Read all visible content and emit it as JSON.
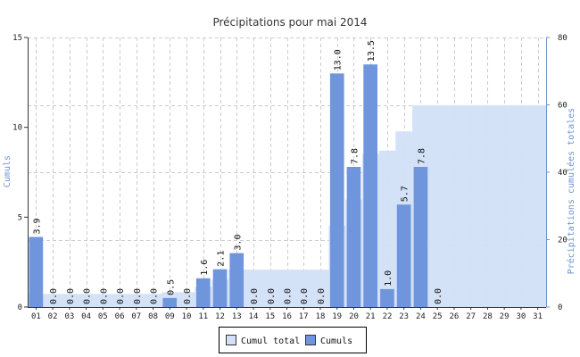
{
  "chart_data": {
    "type": "bar",
    "title": "Précipitations pour mai 2014",
    "categories": [
      "01",
      "02",
      "03",
      "04",
      "05",
      "06",
      "07",
      "08",
      "09",
      "10",
      "11",
      "12",
      "13",
      "14",
      "15",
      "16",
      "17",
      "18",
      "19",
      "20",
      "21",
      "22",
      "23",
      "24",
      "25",
      "26",
      "27",
      "28",
      "29",
      "30",
      "31"
    ],
    "series": [
      {
        "name": "Cumuls",
        "type": "bar",
        "axis": "left",
        "color": "#6f96dd",
        "values": [
          3.9,
          0.0,
          0.0,
          0.0,
          0.0,
          0.0,
          0.0,
          0.0,
          0.5,
          0.0,
          1.6,
          2.1,
          3.0,
          0.0,
          0.0,
          0.0,
          0.0,
          0.0,
          13.0,
          7.8,
          13.5,
          1.0,
          5.7,
          7.8,
          0.0,
          null,
          null,
          null,
          null,
          null,
          null
        ],
        "labels": [
          "3.9",
          "0.0",
          "0.0",
          "0.0",
          "0.0",
          "0.0",
          "0.0",
          "0.0",
          "0.5",
          "0.0",
          "1.6",
          "2.1",
          "3.0",
          "0.0",
          "0.0",
          "0.0",
          "0.0",
          "0.0",
          "13.0",
          "7.8",
          "13.5",
          "1.0",
          "5.7",
          "7.8",
          "0.0",
          "",
          "",
          "",
          "",
          "",
          ""
        ]
      },
      {
        "name": "Cumul total",
        "type": "area",
        "axis": "right",
        "color": "#d2e0f8",
        "values": [
          3.9,
          3.9,
          3.9,
          3.9,
          3.9,
          3.9,
          3.9,
          3.9,
          4.4,
          4.4,
          6.0,
          8.1,
          11.1,
          11.1,
          11.1,
          11.1,
          11.1,
          11.1,
          24.1,
          31.9,
          45.4,
          46.4,
          52.1,
          59.9,
          59.9,
          59.9,
          59.9,
          59.9,
          59.9,
          59.9,
          59.9
        ]
      }
    ],
    "ylabel": "Cumuls",
    "ylabel_right": "Précipitations cumulées totales",
    "ylim": [
      0,
      15
    ],
    "yticks": [
      0,
      5,
      10,
      15
    ],
    "ylim_right": [
      0,
      80
    ],
    "yticks_right": [
      0,
      20,
      40,
      60,
      80
    ],
    "grid": true,
    "legend": "bottom",
    "legend_entries": [
      "Cumul total",
      "Cumuls"
    ],
    "colors": {
      "axis_right": "#6f93cf",
      "grid": "#cccccc"
    }
  }
}
